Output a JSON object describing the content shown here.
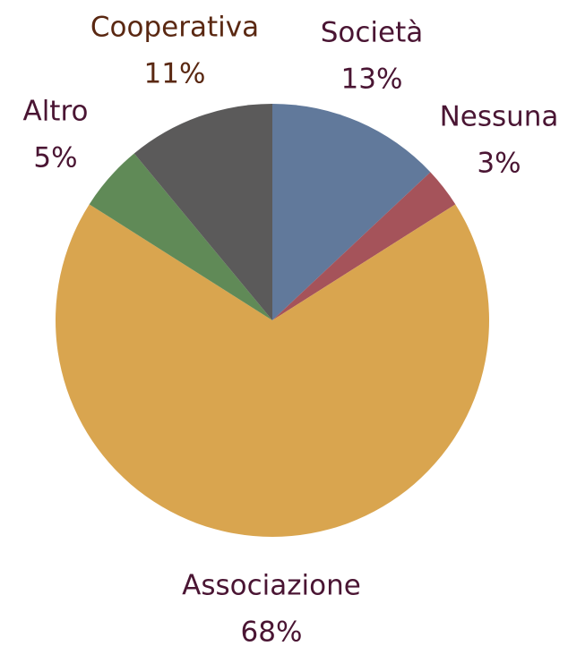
{
  "chart_data": {
    "type": "pie",
    "categories": [
      "Società",
      "Nessuna",
      "Associazione",
      "Altro",
      "Cooperativa"
    ],
    "values": [
      13,
      3,
      68,
      5,
      11
    ],
    "value_labels": [
      "13%",
      "3%",
      "68%",
      "5%",
      "11%"
    ],
    "colors": [
      "#61799b",
      "#a5535a",
      "#d9a54f",
      "#608a57",
      "#5b5a5a"
    ]
  }
}
